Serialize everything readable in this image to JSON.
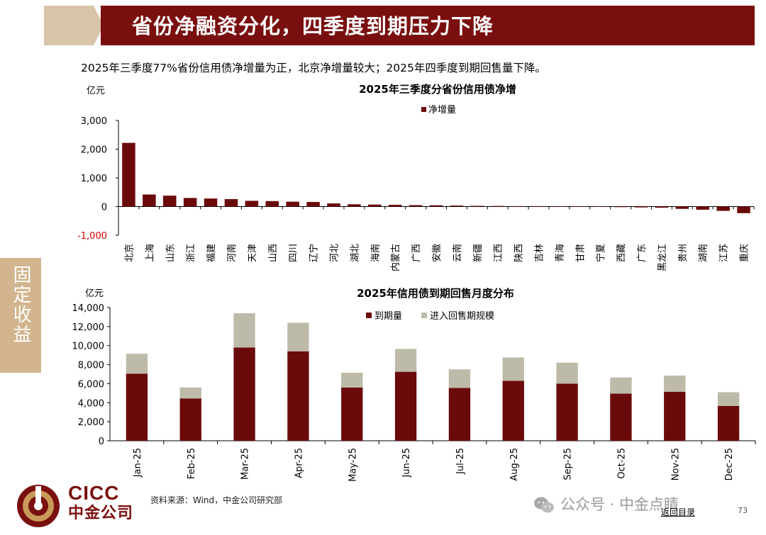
{
  "header": {
    "title": "省份净融资分化，四季度到期压力下降",
    "subtitle": "2025年三季度77%省份信用债净增量为正，北京净增量较大；2025年四季度到期回售量下降。"
  },
  "side_tab": {
    "label": "固定收益"
  },
  "colors": {
    "primary": "#6b0a0a",
    "secondary": "#bdbaa9",
    "title_bar": "#7a0f0f",
    "side_tab": "#d2b58e",
    "negative_label": "#e00000"
  },
  "chart_data": [
    {
      "type": "bar",
      "title": "2025年三季度分省份信用债净增",
      "unit": "亿元",
      "legend": {
        "position": "top-center",
        "entries": [
          "净增量"
        ]
      },
      "categories": [
        "北京",
        "上海",
        "山东",
        "浙江",
        "福建",
        "河南",
        "天津",
        "山西",
        "四川",
        "辽宁",
        "河北",
        "湖北",
        "海南",
        "内蒙古",
        "广西",
        "安徽",
        "云南",
        "新疆",
        "江西",
        "陕西",
        "吉林",
        "青海",
        "甘肃",
        "宁夏",
        "西藏",
        "广东",
        "黑龙江",
        "贵州",
        "湖南",
        "江苏",
        "重庆"
      ],
      "series": [
        {
          "name": "净增量",
          "values": [
            2220,
            420,
            380,
            300,
            280,
            260,
            200,
            190,
            170,
            160,
            110,
            80,
            70,
            60,
            50,
            45,
            35,
            25,
            20,
            15,
            15,
            10,
            10,
            8,
            0,
            -30,
            -40,
            -80,
            -110,
            -150,
            -230
          ]
        }
      ],
      "yticks": [
        "3,000",
        "2,000",
        "1,000",
        "0",
        "-1,000"
      ],
      "ylim": [
        -1000,
        3000
      ],
      "grid": false
    },
    {
      "type": "bar",
      "stacked": true,
      "title": "2025年信用债到期回售月度分布",
      "unit": "亿元",
      "legend": {
        "position": "top-center",
        "entries": [
          "到期量",
          "进入回售期规模"
        ]
      },
      "categories": [
        "Jan-25",
        "Feb-25",
        "Mar-25",
        "Apr-25",
        "May-25",
        "Jun-25",
        "Jul-25",
        "Aug-25",
        "Sep-25",
        "Oct-25",
        "Nov-25",
        "Dec-25"
      ],
      "series": [
        {
          "name": "到期量",
          "values": [
            7050,
            4450,
            9800,
            9400,
            5600,
            7250,
            5550,
            6300,
            6000,
            4950,
            5150,
            3650
          ]
        },
        {
          "name": "进入回售期规模",
          "values": [
            2100,
            1150,
            3600,
            3000,
            1550,
            2400,
            1950,
            2450,
            2200,
            1700,
            1700,
            1450
          ]
        }
      ],
      "yticks": [
        "14,000",
        "12,000",
        "10,000",
        "8,000",
        "6,000",
        "4,000",
        "2,000",
        "0"
      ],
      "ylim": [
        0,
        14000
      ],
      "grid": false
    }
  ],
  "footer": {
    "logo_en": "CICC",
    "logo_cn": "中金公司",
    "source": "资料来源：Wind，中金公司研究部",
    "wechat": "公众号 · 中金点睛",
    "back_link": "返回目录",
    "page": "73"
  }
}
